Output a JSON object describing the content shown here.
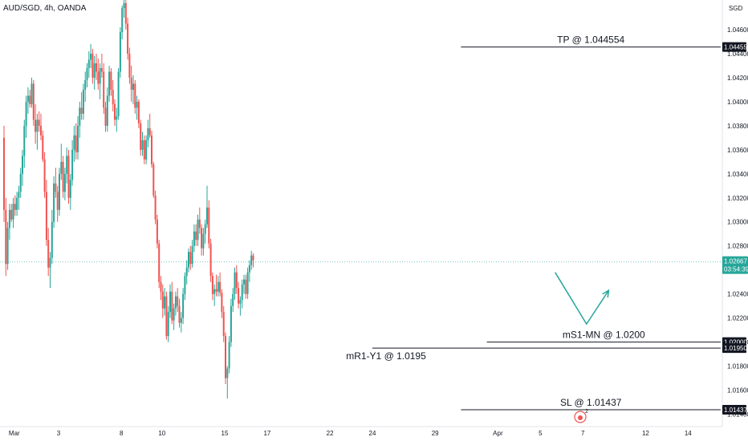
{
  "header": {
    "symbol_label": "AUD/SGD, 4h, OANDA",
    "currency": "SGD"
  },
  "colors": {
    "up": "#26a69a",
    "down": "#ef5350",
    "axis_text": "#131722",
    "level_line": "#131722",
    "current_price_line": "#26a69a",
    "arrow": "#26a69a"
  },
  "chart_data": {
    "type": "candlestick",
    "title": "AUD/SGD, 4h, OANDA",
    "timeframe": "4h",
    "ylim": [
      1.0135,
      1.0478
    ],
    "y_ticks": [
      "1.04600",
      "1.04400",
      "1.04200",
      "1.04000",
      "1.03800",
      "1.03600",
      "1.03400",
      "1.03200",
      "1.03000",
      "1.02800",
      "1.02600",
      "1.02400",
      "1.02200",
      "1.02000",
      "1.01800",
      "1.01600",
      "1.01400"
    ],
    "x_ticks": [
      {
        "label": "Mar",
        "bar": 6
      },
      {
        "label": "3",
        "bar": 30
      },
      {
        "label": "8",
        "bar": 64
      },
      {
        "label": "10",
        "bar": 86
      },
      {
        "label": "15",
        "bar": 120
      },
      {
        "label": "17",
        "bar": 143
      },
      {
        "label": "22",
        "bar": 177
      },
      {
        "label": "24",
        "bar": 200
      },
      {
        "label": "29",
        "bar": 234
      },
      {
        "label": "Apr",
        "bar": 268
      },
      {
        "label": "5",
        "bar": 291
      },
      {
        "label": "7",
        "bar": 314
      },
      {
        "label": "12",
        "bar": 348
      },
      {
        "label": "14",
        "bar": 371
      }
    ],
    "candles": [
      [
        1.037,
        1.038,
        1.03,
        1.031
      ],
      [
        1.031,
        1.032,
        1.0255,
        1.0265
      ],
      [
        1.0265,
        1.03,
        1.026,
        1.0295
      ],
      [
        1.0295,
        1.0315,
        1.0285,
        1.031
      ],
      [
        1.031,
        1.0315,
        1.03,
        1.0302
      ],
      [
        1.0302,
        1.032,
        1.0295,
        1.0315
      ],
      [
        1.0315,
        1.0322,
        1.0305,
        1.031
      ],
      [
        1.031,
        1.0325,
        1.0305,
        1.032
      ],
      [
        1.032,
        1.033,
        1.031,
        1.0325
      ],
      [
        1.0325,
        1.0345,
        1.032,
        1.034
      ],
      [
        1.034,
        1.036,
        1.033,
        1.0355
      ],
      [
        1.0355,
        1.0385,
        1.0345,
        1.038
      ],
      [
        1.038,
        1.0405,
        1.037,
        1.04
      ],
      [
        1.04,
        1.0412,
        1.039,
        1.0405
      ],
      [
        1.0405,
        1.041,
        1.0395,
        1.0398
      ],
      [
        1.0398,
        1.042,
        1.0395,
        1.0415
      ],
      [
        1.0415,
        1.0418,
        1.038,
        1.0385
      ],
      [
        1.0385,
        1.0398,
        1.0365,
        1.0375
      ],
      [
        1.0375,
        1.039,
        1.036,
        1.0385
      ],
      [
        1.0385,
        1.0392,
        1.0375,
        1.038
      ],
      [
        1.038,
        1.039,
        1.0368,
        1.0372
      ],
      [
        1.0372,
        1.0376,
        1.035,
        1.0352
      ],
      [
        1.0352,
        1.0358,
        1.032,
        1.0325
      ],
      [
        1.0325,
        1.0335,
        1.028,
        1.0285
      ],
      [
        1.0285,
        1.0295,
        1.0255,
        1.0262
      ],
      [
        1.0262,
        1.0275,
        1.0245,
        1.027
      ],
      [
        1.027,
        1.031,
        1.0265,
        1.03
      ],
      [
        1.03,
        1.0338,
        1.0295,
        1.0332
      ],
      [
        1.0332,
        1.0345,
        1.032,
        1.0325
      ],
      [
        1.0325,
        1.033,
        1.03,
        1.031
      ],
      [
        1.031,
        1.0345,
        1.0305,
        1.034
      ],
      [
        1.034,
        1.0365,
        1.0335,
        1.035
      ],
      [
        1.035,
        1.0355,
        1.032,
        1.0325
      ],
      [
        1.0325,
        1.0345,
        1.0318,
        1.034
      ],
      [
        1.034,
        1.0362,
        1.0332,
        1.0355
      ],
      [
        1.0355,
        1.036,
        1.0315,
        1.032
      ],
      [
        1.032,
        1.034,
        1.031,
        1.0335
      ],
      [
        1.0335,
        1.0368,
        1.033,
        1.036
      ],
      [
        1.036,
        1.038,
        1.035,
        1.0372
      ],
      [
        1.0372,
        1.0382,
        1.0352,
        1.0358
      ],
      [
        1.0358,
        1.0388,
        1.0352,
        1.038
      ],
      [
        1.038,
        1.04,
        1.037,
        1.0395
      ],
      [
        1.0395,
        1.0408,
        1.0385,
        1.039
      ],
      [
        1.039,
        1.0415,
        1.0385,
        1.041
      ],
      [
        1.041,
        1.0425,
        1.04,
        1.0418
      ],
      [
        1.0418,
        1.0432,
        1.0412,
        1.0428
      ],
      [
        1.0428,
        1.0442,
        1.042,
        1.0435
      ],
      [
        1.0435,
        1.0448,
        1.0428,
        1.044
      ],
      [
        1.044,
        1.0444,
        1.0415,
        1.042
      ],
      [
        1.042,
        1.0438,
        1.041,
        1.0432
      ],
      [
        1.0432,
        1.044,
        1.0418,
        1.0425
      ],
      [
        1.0425,
        1.0436,
        1.041,
        1.0415
      ],
      [
        1.0415,
        1.0432,
        1.0402,
        1.0428
      ],
      [
        1.0428,
        1.044,
        1.042,
        1.0425
      ],
      [
        1.0425,
        1.0432,
        1.039,
        1.0395
      ],
      [
        1.0395,
        1.04,
        1.0375,
        1.038
      ],
      [
        1.038,
        1.0412,
        1.0375,
        1.0405
      ],
      [
        1.0405,
        1.043,
        1.04,
        1.0425
      ],
      [
        1.0425,
        1.0428,
        1.0405,
        1.041
      ],
      [
        1.041,
        1.0418,
        1.0392,
        1.0398
      ],
      [
        1.0398,
        1.0402,
        1.038,
        1.0385
      ],
      [
        1.0385,
        1.0395,
        1.0375,
        1.0388
      ],
      [
        1.0388,
        1.0428,
        1.0385,
        1.0425
      ],
      [
        1.0425,
        1.0462,
        1.042,
        1.0458
      ],
      [
        1.0458,
        1.048,
        1.0452,
        1.0478
      ],
      [
        1.0478,
        1.0485,
        1.047,
        1.0482
      ],
      [
        1.0482,
        1.0486,
        1.046,
        1.0465
      ],
      [
        1.0465,
        1.047,
        1.0435,
        1.044
      ],
      [
        1.044,
        1.0445,
        1.0415,
        1.042
      ],
      [
        1.042,
        1.043,
        1.04,
        1.041
      ],
      [
        1.041,
        1.0422,
        1.0398,
        1.0415
      ],
      [
        1.0415,
        1.0418,
        1.039,
        1.0395
      ],
      [
        1.0395,
        1.0405,
        1.0385,
        1.04
      ],
      [
        1.04,
        1.0402,
        1.0378,
        1.0382
      ],
      [
        1.0382,
        1.0385,
        1.0355,
        1.036
      ],
      [
        1.036,
        1.0375,
        1.0355,
        1.0368
      ],
      [
        1.0368,
        1.0372,
        1.0348,
        1.0352
      ],
      [
        1.0352,
        1.0372,
        1.0348,
        1.0368
      ],
      [
        1.0368,
        1.0385,
        1.0362,
        1.0378
      ],
      [
        1.0378,
        1.039,
        1.037,
        1.0372
      ],
      [
        1.0372,
        1.0376,
        1.0345,
        1.0348
      ],
      [
        1.0348,
        1.035,
        1.032,
        1.0322
      ],
      [
        1.0322,
        1.0326,
        1.0298,
        1.0302
      ],
      [
        1.0302,
        1.0306,
        1.0278,
        1.0282
      ],
      [
        1.0282,
        1.0285,
        1.0245,
        1.025
      ],
      [
        1.025,
        1.0255,
        1.0235,
        1.0242
      ],
      [
        1.0242,
        1.0248,
        1.022,
        1.0228
      ],
      [
        1.0228,
        1.0245,
        1.0222,
        1.0238
      ],
      [
        1.0238,
        1.0242,
        1.0202,
        1.0205
      ],
      [
        1.0205,
        1.023,
        1.02,
        1.0225
      ],
      [
        1.0225,
        1.0248,
        1.022,
        1.0242
      ],
      [
        1.0242,
        1.025,
        1.0215,
        1.0218
      ],
      [
        1.0218,
        1.0232,
        1.021,
        1.0228
      ],
      [
        1.0228,
        1.0242,
        1.0222,
        1.0238
      ],
      [
        1.0238,
        1.0245,
        1.0225,
        1.023
      ],
      [
        1.023,
        1.0236,
        1.0212,
        1.0216
      ],
      [
        1.0216,
        1.0225,
        1.0208,
        1.022
      ],
      [
        1.022,
        1.0245,
        1.0215,
        1.024
      ],
      [
        1.024,
        1.0258,
        1.0235,
        1.0255
      ],
      [
        1.0255,
        1.0268,
        1.0248,
        1.0262
      ],
      [
        1.0262,
        1.0278,
        1.0258,
        1.0275
      ],
      [
        1.0275,
        1.028,
        1.026,
        1.0265
      ],
      [
        1.0265,
        1.0285,
        1.0262,
        1.028
      ],
      [
        1.028,
        1.0298,
        1.0275,
        1.0292
      ],
      [
        1.0292,
        1.0298,
        1.028,
        1.0285
      ],
      [
        1.0285,
        1.0306,
        1.028,
        1.0302
      ],
      [
        1.0302,
        1.0312,
        1.029,
        1.0295
      ],
      [
        1.0295,
        1.0298,
        1.0272,
        1.0278
      ],
      [
        1.0278,
        1.0295,
        1.0272,
        1.029
      ],
      [
        1.029,
        1.0302,
        1.0282,
        1.0298
      ],
      [
        1.0298,
        1.033,
        1.0295,
        1.0312
      ],
      [
        1.0312,
        1.0318,
        1.0278,
        1.0282
      ],
      [
        1.0282,
        1.0286,
        1.025,
        1.0255
      ],
      [
        1.0255,
        1.0258,
        1.0235,
        1.024
      ],
      [
        1.024,
        1.0248,
        1.023,
        1.0244
      ],
      [
        1.0244,
        1.0256,
        1.0238,
        1.0242
      ],
      [
        1.0242,
        1.0255,
        1.0238,
        1.025
      ],
      [
        1.025,
        1.0258,
        1.0238,
        1.0241
      ],
      [
        1.0241,
        1.0244,
        1.022,
        1.0225
      ],
      [
        1.0225,
        1.023,
        1.02,
        1.0205
      ],
      [
        1.0205,
        1.0208,
        1.0165,
        1.017
      ],
      [
        1.017,
        1.018,
        1.0153,
        1.0178
      ],
      [
        1.0178,
        1.0205,
        1.0174,
        1.02
      ],
      [
        1.02,
        1.0236,
        1.0196,
        1.023
      ],
      [
        1.023,
        1.0245,
        1.0225,
        1.024
      ],
      [
        1.024,
        1.0262,
        1.0235,
        1.0258
      ],
      [
        1.0258,
        1.0264,
        1.024,
        1.0245
      ],
      [
        1.0245,
        1.025,
        1.0228,
        1.0232
      ],
      [
        1.0232,
        1.0238,
        1.0222,
        1.0235
      ],
      [
        1.0235,
        1.0252,
        1.0228,
        1.0248
      ],
      [
        1.0248,
        1.0256,
        1.024,
        1.0252
      ],
      [
        1.0252,
        1.0256,
        1.0236,
        1.024
      ],
      [
        1.024,
        1.0262,
        1.0236,
        1.0258
      ],
      [
        1.0258,
        1.0268,
        1.025,
        1.0264
      ],
      [
        1.0264,
        1.0276,
        1.026,
        1.0272
      ],
      [
        1.0272,
        1.0274,
        1.0262,
        1.0268
      ]
    ],
    "current_price": {
      "value": 1.02667,
      "label": "1.02667",
      "countdown": "03:54:39"
    },
    "levels": [
      {
        "label": "TP @ 1.044554",
        "value": 1.044554,
        "tag": "1.04455",
        "x_start_bar": 248
      },
      {
        "label": "mS1-MN @ 1.0200",
        "value": 1.02,
        "tag": "1.02000",
        "x_start_bar": 262
      },
      {
        "label": "mR1-Y1 @ 1.0195",
        "value": 1.0195,
        "tag": "1.01950",
        "x_start_bar": 200
      },
      {
        "label": "SL @ 1.01437",
        "value": 1.01437,
        "tag": "1.01437",
        "x_start_bar": 248
      }
    ],
    "projection": [
      {
        "bar": 299,
        "price": 1.0258
      },
      {
        "bar": 316,
        "price": 1.0215
      },
      {
        "bar": 328,
        "price": 1.0243
      }
    ],
    "grid": false
  }
}
